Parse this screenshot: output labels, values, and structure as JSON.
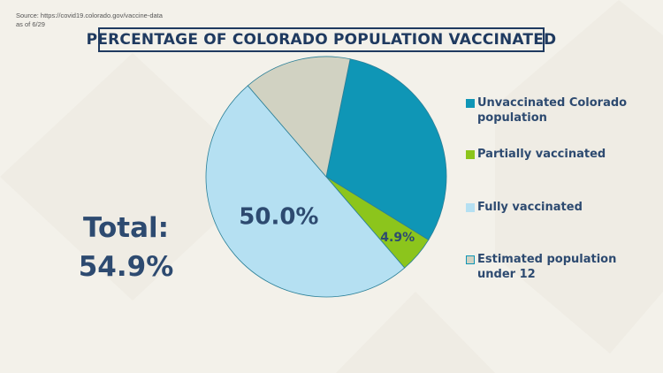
{
  "source": {
    "line1": "Source: https://covid19.colorado.gov/vaccine-data",
    "line2": "as of 6/29"
  },
  "title": "PERCENTAGE OF COLORADO POPULATION VACCINATED",
  "total": {
    "line1": "Total:",
    "line2": "54.9%"
  },
  "colors": {
    "unvaccinated": "#0f96b6",
    "partial": "#8cc51c",
    "fully": "#b5e0f2",
    "under12": "#d1d2c2",
    "text_dark": "#2d4a70",
    "title_border": "#1f3a60"
  },
  "chart_data": {
    "type": "pie",
    "title": "PERCENTAGE OF COLORADO POPULATION VACCINATED",
    "slices": [
      {
        "name": "Unvaccinated Colorado population",
        "value": 30.6,
        "color": "#0f96b6",
        "label": ""
      },
      {
        "name": "Partially vaccinated",
        "value": 4.9,
        "color": "#8cc51c",
        "label": "4.9%"
      },
      {
        "name": "Fully vaccinated",
        "value": 50.0,
        "color": "#b5e0f2",
        "label": "50.0%"
      },
      {
        "name": "Estimated population under 12",
        "value": 14.5,
        "color": "#d1d2c2",
        "label": ""
      }
    ],
    "legend_position": "right",
    "legend": [
      "Unvaccinated Colorado population",
      "Partially vaccinated",
      "Fully vaccinated",
      "Estimated population under 12"
    ]
  }
}
